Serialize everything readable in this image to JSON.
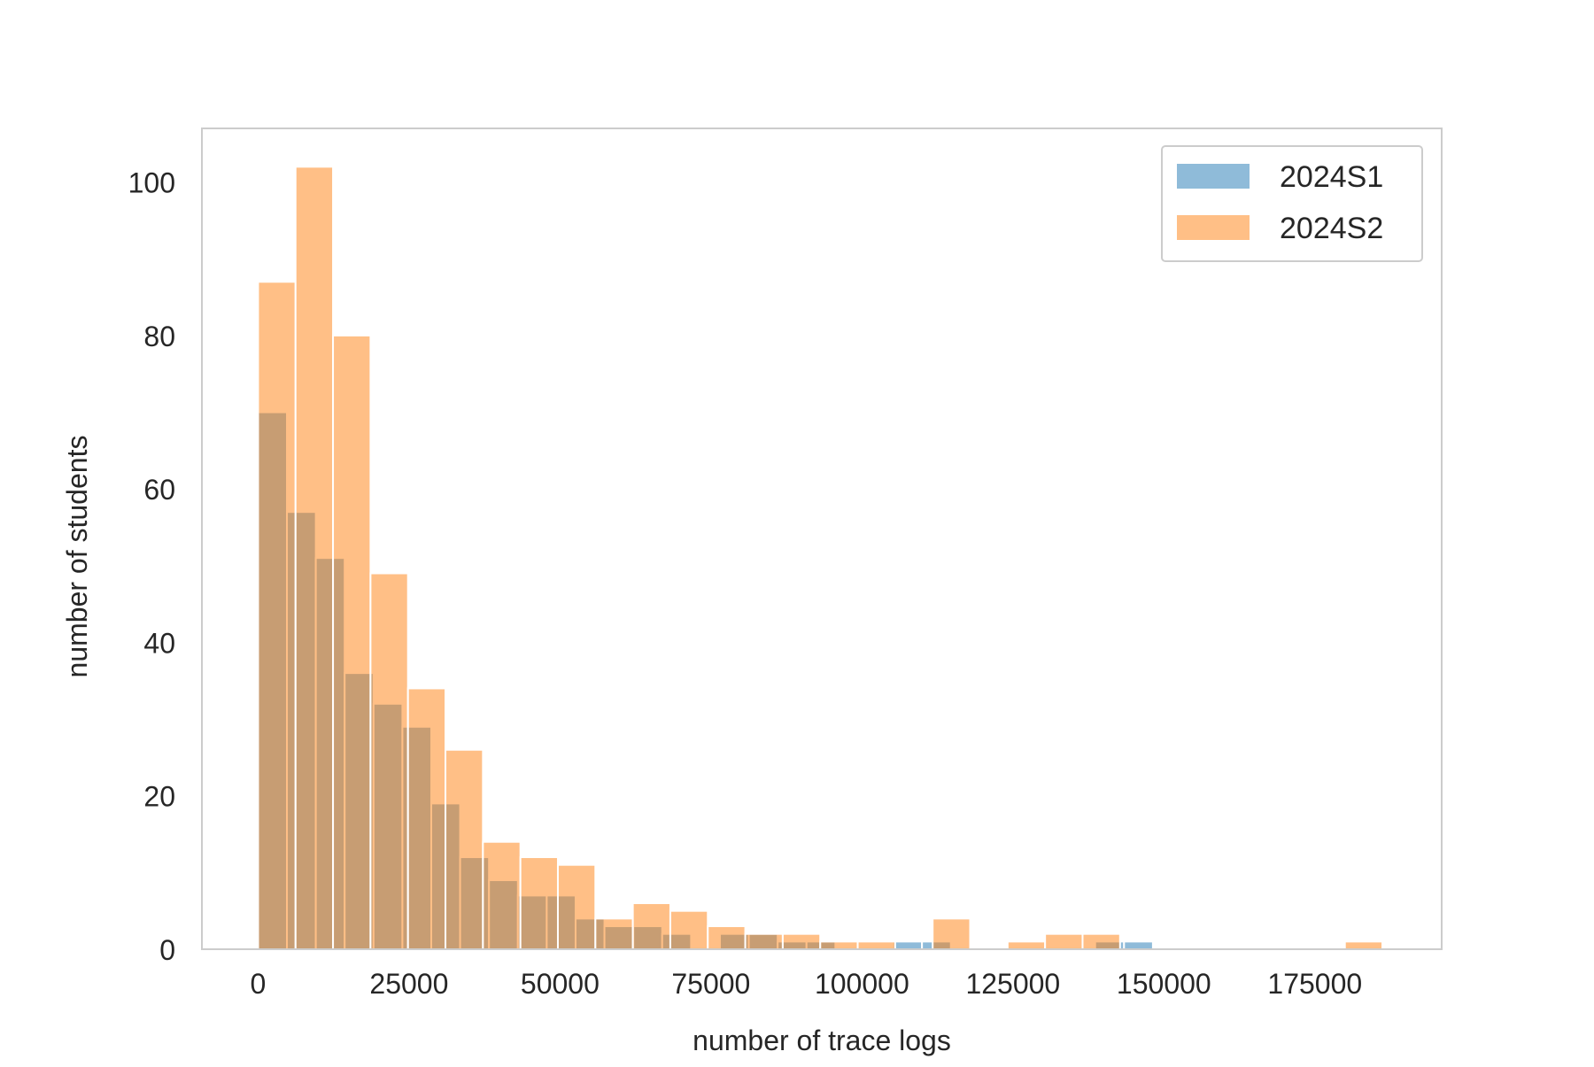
{
  "chart_data": {
    "type": "bar",
    "title": "",
    "xlabel": "number of trace logs",
    "ylabel": "number of students",
    "xlim": [
      -9300,
      196000
    ],
    "ylim": [
      0,
      107
    ],
    "xticks": [
      0,
      25000,
      50000,
      75000,
      100000,
      125000,
      150000,
      175000
    ],
    "xtick_labels": [
      "0",
      "25000",
      "50000",
      "75000",
      "100000",
      "125000",
      "150000",
      "175000"
    ],
    "yticks": [
      0,
      20,
      40,
      60,
      80,
      100
    ],
    "ytick_labels": [
      "0",
      "20",
      "40",
      "60",
      "80",
      "100"
    ],
    "grid": false,
    "legend_position": "top-right",
    "series": [
      {
        "name": "2024S1",
        "color": "#1f77b4",
        "bin_width": 4780,
        "bin_start": 0,
        "values": [
          70,
          57,
          51,
          36,
          32,
          29,
          19,
          12,
          9,
          7,
          7,
          4,
          3,
          3,
          2,
          0,
          2,
          2,
          1,
          1,
          0,
          0,
          1,
          1,
          0,
          0,
          0,
          0,
          0,
          1,
          1
        ]
      },
      {
        "name": "2024S2",
        "color": "#ff7f0e",
        "bin_width": 6206,
        "bin_start": 0,
        "values": [
          87,
          102,
          80,
          49,
          34,
          26,
          14,
          12,
          11,
          4,
          6,
          5,
          3,
          2,
          2,
          1,
          1,
          0,
          4,
          0,
          1,
          2,
          2,
          0,
          0,
          0,
          0,
          0,
          0,
          1
        ]
      }
    ]
  }
}
